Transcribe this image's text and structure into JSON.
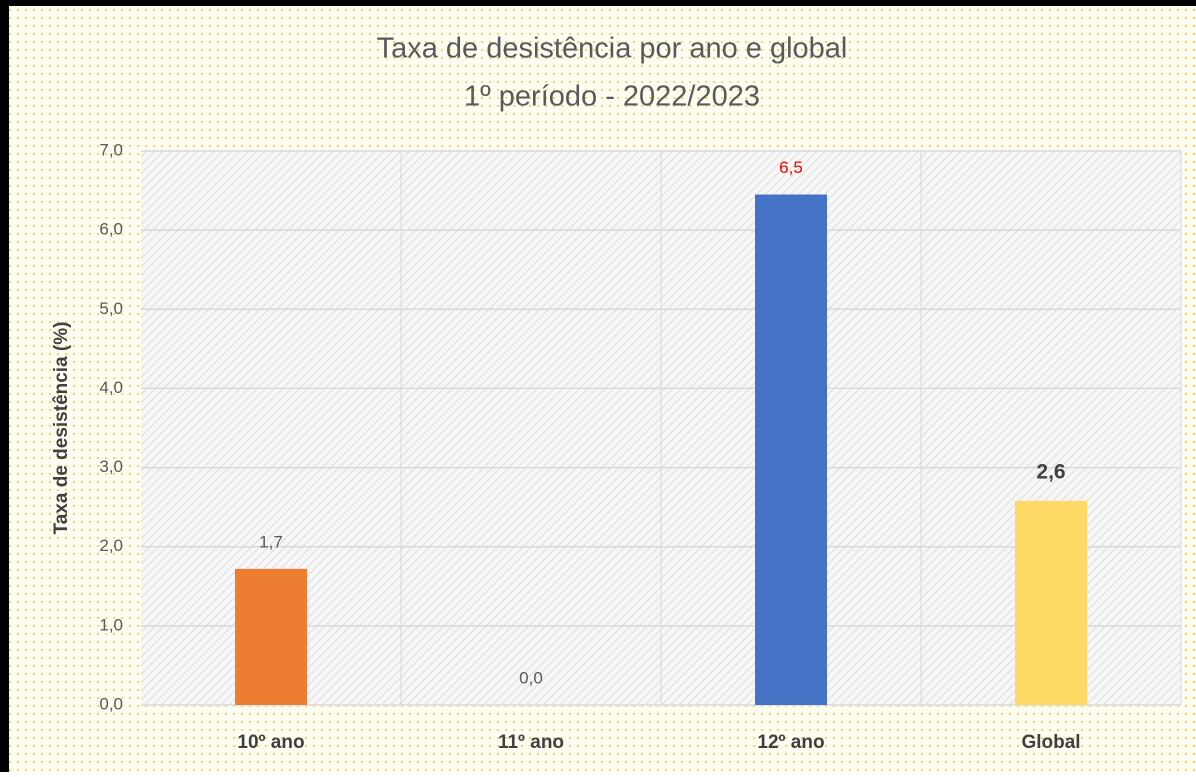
{
  "chart_data": {
    "type": "bar",
    "title": "Taxa de desistência por ano e global",
    "subtitle": "1º período - 2022/2023",
    "y_label": "Taxa de desistência (%)",
    "categories": [
      "10º ano",
      "11º ano",
      "12º ano",
      "Global"
    ],
    "values": [
      1.72,
      0,
      6.45,
      2.58
    ],
    "value_labels": [
      "1,7",
      "0,0",
      "6,5",
      "2,6"
    ],
    "colors": [
      "#ed7d31",
      "#a5a5a5",
      "#4472c4",
      "#ffd966"
    ],
    "label_colors": [
      "#595959",
      "#595959",
      "#ff0000",
      "#404040"
    ],
    "label_bold": [
      false,
      false,
      false,
      true
    ],
    "ylim": [
      0,
      7
    ],
    "yticks": [
      {
        "value": 0,
        "label": "0,0"
      },
      {
        "value": 1,
        "label": "1,0"
      },
      {
        "value": 2,
        "label": "2,0"
      },
      {
        "value": 3,
        "label": "3,0"
      },
      {
        "value": 4,
        "label": "4,0"
      },
      {
        "value": 5,
        "label": "5,0"
      },
      {
        "value": 6,
        "label": "6,0"
      },
      {
        "value": 7,
        "label": "7,0"
      }
    ],
    "grid": true
  }
}
